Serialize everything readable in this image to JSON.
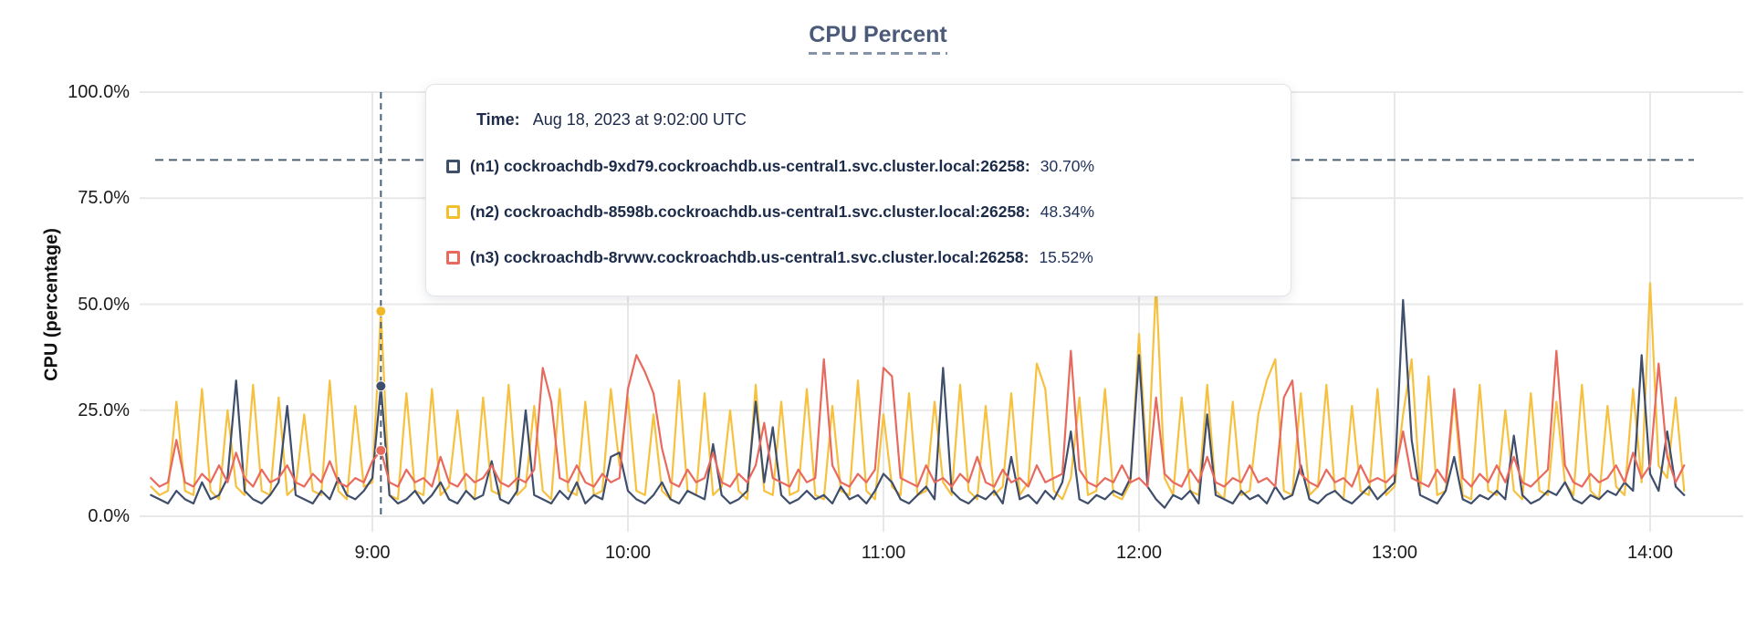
{
  "title": {
    "text": "CPU Percent",
    "color": "#4a5a78"
  },
  "y_axis": {
    "label": "CPU (percentage)",
    "ticks": [
      {
        "label": "100.0%",
        "pct": 100
      },
      {
        "label": "75.0%",
        "pct": 75
      },
      {
        "label": "50.0%",
        "pct": 50
      },
      {
        "label": "25.0%",
        "pct": 25
      },
      {
        "label": "0.0%",
        "pct": 0
      }
    ]
  },
  "x_axis": {
    "ticks": [
      {
        "label": "9:00",
        "minute": 540
      },
      {
        "label": "10:00",
        "minute": 600
      },
      {
        "label": "11:00",
        "minute": 660
      },
      {
        "label": "12:00",
        "minute": 720
      },
      {
        "label": "13:00",
        "minute": 780
      },
      {
        "label": "14:00",
        "minute": 840
      }
    ]
  },
  "tooltip": {
    "time_label": "Time:",
    "time_value": "Aug 18, 2023 at 9:02:00 UTC",
    "rows": [
      {
        "name": "(n1) cockroachdb-9xd79.cockroachdb.us-central1.svc.cluster.local:26258:",
        "value": "30.70%",
        "color": "#3e4e6b"
      },
      {
        "name": "(n2) cockroachdb-8598b.cockroachdb.us-central1.svc.cluster.local:26258:",
        "value": "48.34%",
        "color": "#f2c02e"
      },
      {
        "name": "(n3) cockroachdb-8rvwv.cockroachdb.us-central1.svc.cluster.local:26258:",
        "value": "15.52%",
        "color": "#e8695d"
      }
    ]
  },
  "chart_data": {
    "type": "line",
    "title": "CPU Percent",
    "xlabel": "",
    "ylabel": "CPU (percentage)",
    "ylim": [
      0,
      100
    ],
    "grid": true,
    "grid_color": "#e8e8e8",
    "dash_color": "#4e6277",
    "threshold_pct": 84,
    "x_start_minute": 488,
    "x_step_minutes": 2,
    "x_end_minute": 848,
    "crosshair": {
      "minute": 542,
      "time_text": "9:02:00 UTC",
      "dots": [
        {
          "series": "n2",
          "pct": 48.34,
          "color": "#f0b929"
        },
        {
          "series": "n1",
          "pct": 30.7,
          "color": "#3e4e6b"
        },
        {
          "series": "n3",
          "pct": 15.52,
          "color": "#e8695d"
        }
      ]
    },
    "series": [
      {
        "id": "n2",
        "name": "(n2) cockroachdb-8598b.cockroachdb.us-central1.svc.cluster.local:26258",
        "color": "#f6c13f",
        "values": [
          7,
          5,
          6,
          27,
          6,
          5,
          30,
          6,
          4,
          25,
          7,
          5,
          31,
          6,
          5,
          28,
          5,
          7,
          24,
          6,
          5,
          32,
          6,
          4,
          26,
          7,
          8,
          48.34,
          5,
          4,
          29,
          6,
          5,
          30,
          5,
          7,
          25,
          6,
          4,
          28,
          6,
          5,
          31,
          5,
          7,
          26,
          6,
          4,
          30,
          6,
          5,
          27,
          5,
          6,
          30,
          12,
          28,
          6,
          5,
          24,
          6,
          4,
          32,
          6,
          5,
          29,
          5,
          7,
          25,
          6,
          4,
          31,
          6,
          5,
          27,
          5,
          6,
          30,
          5,
          4,
          26,
          6,
          5,
          32,
          6,
          4,
          24,
          7,
          5,
          29,
          5,
          6,
          27,
          8,
          5,
          31,
          6,
          4,
          26,
          5,
          7,
          29,
          5,
          8,
          36,
          30,
          6,
          4,
          9,
          28,
          5,
          6,
          30,
          5,
          4,
          8,
          43,
          10,
          55,
          9,
          5,
          28,
          6,
          5,
          31,
          6,
          4,
          27,
          5,
          6,
          24,
          32,
          37,
          6,
          5,
          29,
          5,
          7,
          31,
          6,
          4,
          26,
          6,
          5,
          30,
          5,
          7,
          24,
          37,
          6,
          33,
          5,
          6,
          28,
          5,
          4,
          31,
          6,
          5,
          25,
          6,
          4,
          29,
          6,
          5,
          27,
          8,
          5,
          31,
          6,
          4,
          26,
          7,
          5,
          30,
          8,
          55,
          12,
          9,
          28,
          6
        ]
      },
      {
        "id": "n1",
        "name": "(n1) cockroachdb-9xd79.cockroachdb.us-central1.svc.cluster.local:26258",
        "color": "#3e4e6b",
        "values": [
          5,
          4,
          3,
          6,
          4,
          3,
          8,
          4,
          5,
          9,
          32,
          6,
          4,
          3,
          5,
          8,
          26,
          5,
          4,
          3,
          6,
          4,
          9,
          5,
          4,
          6,
          9,
          30.7,
          5,
          3,
          4,
          6,
          3,
          5,
          8,
          4,
          3,
          6,
          4,
          5,
          13,
          4,
          3,
          6,
          25,
          5,
          4,
          3,
          6,
          4,
          8,
          3,
          5,
          4,
          14,
          15,
          6,
          4,
          3,
          5,
          8,
          4,
          3,
          6,
          5,
          4,
          17,
          5,
          3,
          4,
          6,
          27,
          8,
          21,
          5,
          3,
          4,
          6,
          4,
          5,
          3,
          7,
          4,
          5,
          3,
          6,
          10,
          8,
          4,
          3,
          5,
          7,
          4,
          35,
          6,
          4,
          3,
          5,
          4,
          6,
          3,
          14,
          4,
          5,
          3,
          6,
          4,
          8,
          20,
          4,
          3,
          5,
          4,
          6,
          5,
          9,
          38,
          7,
          4,
          2,
          5,
          4,
          6,
          3,
          24,
          5,
          4,
          3,
          6,
          4,
          5,
          3,
          7,
          4,
          5,
          12,
          4,
          3,
          5,
          6,
          4,
          3,
          5,
          7,
          4,
          6,
          8,
          51,
          18,
          5,
          4,
          3,
          6,
          14,
          4,
          3,
          5,
          4,
          6,
          4,
          19,
          5,
          3,
          4,
          6,
          5,
          8,
          4,
          3,
          5,
          4,
          6,
          5,
          8,
          6,
          38,
          10,
          6,
          20,
          7,
          5
        ]
      },
      {
        "id": "n3",
        "name": "(n3) cockroachdb-8rvwv.cockroachdb.us-central1.svc.cluster.local:26258",
        "color": "#e8695d",
        "values": [
          9,
          7,
          8,
          18,
          8,
          7,
          10,
          8,
          12,
          8,
          15,
          9,
          7,
          11,
          8,
          9,
          12,
          8,
          7,
          10,
          8,
          13,
          8,
          7,
          9,
          8,
          13,
          15.52,
          8,
          7,
          11,
          8,
          9,
          7,
          14,
          8,
          7,
          10,
          8,
          9,
          12,
          8,
          7,
          9,
          8,
          11,
          35,
          27,
          9,
          8,
          12,
          8,
          7,
          10,
          8,
          9,
          30,
          38,
          34,
          29,
          16,
          8,
          7,
          11,
          8,
          9,
          15,
          8,
          7,
          10,
          8,
          12,
          22,
          9,
          8,
          7,
          11,
          8,
          9,
          37,
          12,
          8,
          7,
          10,
          8,
          11,
          35,
          33,
          9,
          8,
          7,
          12,
          8,
          9,
          7,
          10,
          8,
          14,
          8,
          7,
          11,
          8,
          9,
          7,
          12,
          8,
          9,
          10,
          39,
          11,
          8,
          7,
          9,
          8,
          12,
          8,
          9,
          7,
          28,
          10,
          8,
          7,
          11,
          8,
          14,
          8,
          7,
          9,
          8,
          12,
          8,
          9,
          7,
          28,
          32,
          10,
          8,
          7,
          11,
          8,
          9,
          7,
          12,
          8,
          9,
          8,
          10,
          20,
          9,
          8,
          7,
          11,
          8,
          30,
          9,
          7,
          10,
          8,
          12,
          8,
          14,
          8,
          7,
          9,
          11,
          39,
          12,
          8,
          7,
          10,
          8,
          9,
          12,
          8,
          15,
          9,
          12,
          36,
          14,
          8,
          12
        ]
      }
    ]
  }
}
